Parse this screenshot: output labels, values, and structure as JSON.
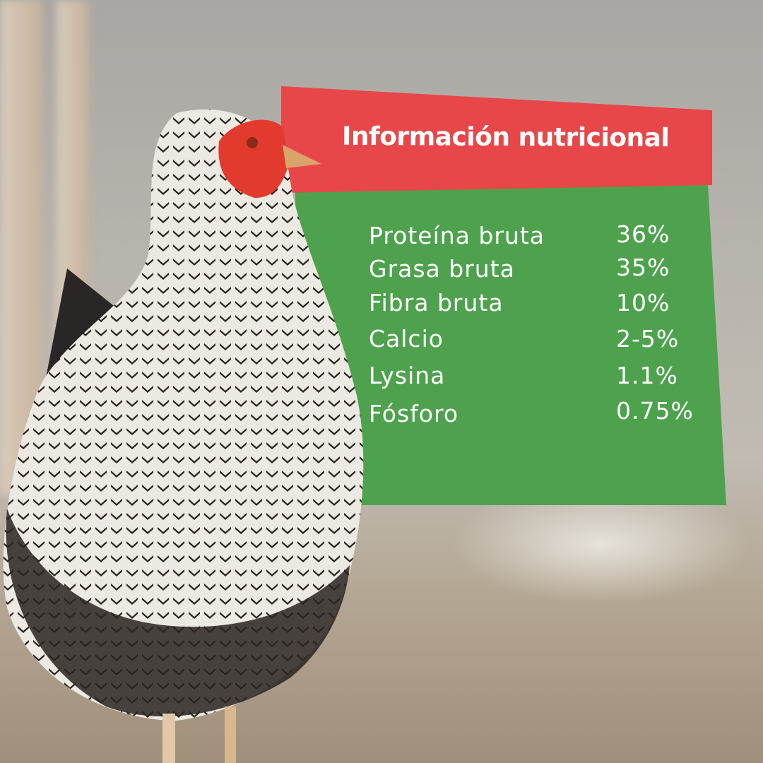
{
  "title": "Información nutricional",
  "nutrients": [
    {
      "label": "Proteína bruta",
      "value": "36%"
    },
    {
      "label": "Grasa bruta",
      "value": "35%"
    },
    {
      "label": "Fibra bruta",
      "value": "10%"
    },
    {
      "label": "Calcio",
      "value": "2-5%"
    },
    {
      "label": "Lysina",
      "value": "1.1%"
    },
    {
      "label": "Fósforo",
      "value": "0.75%"
    }
  ],
  "colors": {
    "banner_red": "#e8474a",
    "panel_green": "#4ea24e"
  }
}
